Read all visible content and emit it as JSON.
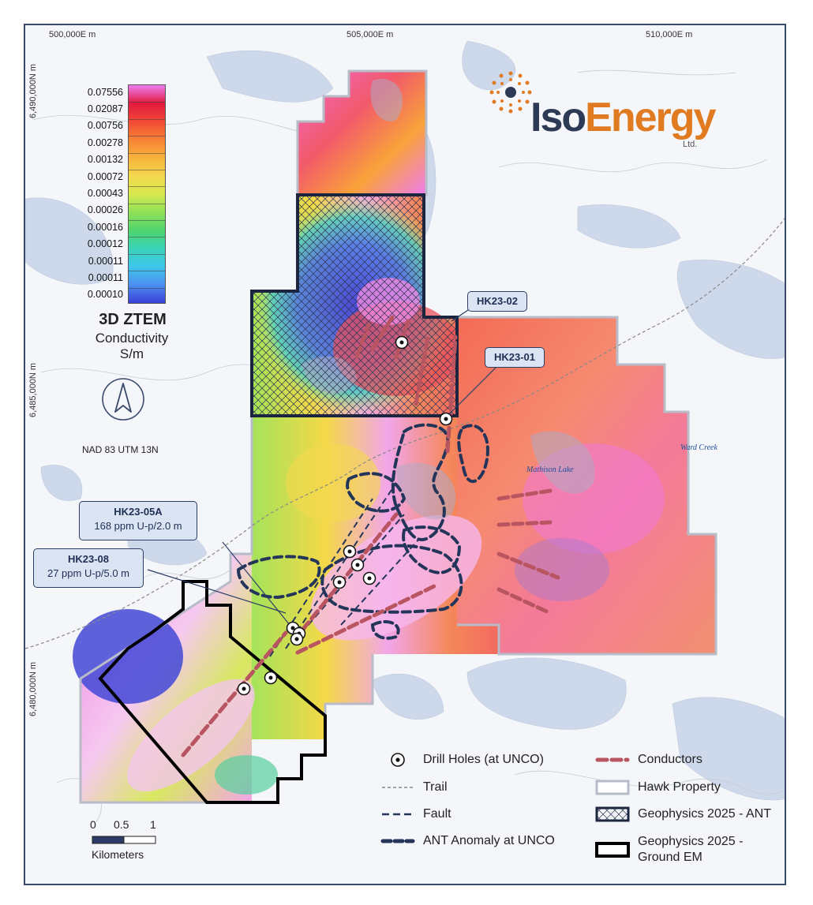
{
  "coords": {
    "eastings": [
      "500,000E m",
      "505,000E m",
      "510,000E m"
    ],
    "northings": [
      "6,490,000N m",
      "6,485,000N m",
      "6,480,000N m"
    ]
  },
  "colorbar": {
    "values": [
      "0.07556",
      "0.02087",
      "0.00756",
      "0.00278",
      "0.00132",
      "0.00072",
      "0.00043",
      "0.00026",
      "0.00016",
      "0.00012",
      "0.00011",
      "0.00011",
      "0.00010"
    ],
    "colors": [
      "#ee7df0",
      "#e2193e",
      "#f14a35",
      "#f88235",
      "#f7b23b",
      "#f3d84f",
      "#d6e84e",
      "#8fe158",
      "#4fd56e",
      "#3bd3b8",
      "#3ec7ea",
      "#4c8ff0",
      "#3a3fd8"
    ],
    "title": "3D ZTEM",
    "subtitle_line1": "Conductivity",
    "subtitle_line2": "S/m"
  },
  "north_arrow": {
    "icon": "north-arrow-icon"
  },
  "datum": "NAD 83 UTM 13N",
  "logo": {
    "iso": "Iso",
    "energy": "Energy",
    "ltd": "Ltd."
  },
  "callouts": {
    "hk2302": {
      "label": "HK23-02"
    },
    "hk2301": {
      "label": "HK23-01"
    },
    "hk2305a": {
      "label": "HK23-05A",
      "detail": "168 ppm U-p/2.0 m"
    },
    "hk2308": {
      "label": "HK23-08",
      "detail": "27 ppm U-p/5.0 m"
    }
  },
  "water_labels": {
    "mathison": "Mathison Lake",
    "ward": "Ward Creek"
  },
  "legend": {
    "drill_holes": "Drill Holes (at UNCO)",
    "trail": "Trail",
    "fault": "Fault",
    "ant_anomaly": "ANT Anomaly at UNCO",
    "conductors": "Conductors",
    "hawk_property": "Hawk Property",
    "geophysics_ant": "Geophysics 2025 - ANT",
    "geophysics_em_line1": "Geophysics 2025 -",
    "geophysics_em_line2": "Ground EM"
  },
  "scale": {
    "ticks": [
      "0",
      "0.5",
      "1"
    ],
    "unit": "Kilometers"
  },
  "colors": {
    "frame": "#3a4a6a",
    "ant_anomaly": "#24355a",
    "conductor": "#b85560",
    "logo_orange": "#e07b22",
    "logo_navy": "#2d3a55"
  }
}
